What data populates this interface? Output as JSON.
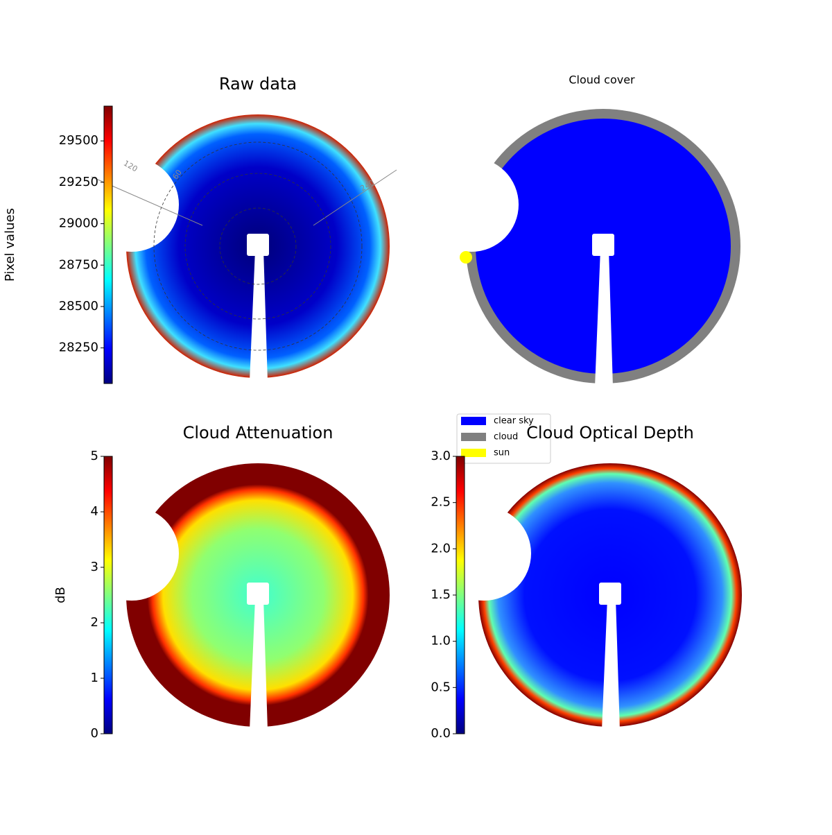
{
  "chart_data": [
    {
      "type": "image",
      "title": "Raw data",
      "colorbar_label": "Pixel values",
      "ylim": [
        28035,
        29710
      ],
      "yticks": [
        28250,
        28500,
        28750,
        29000,
        29250,
        29500
      ],
      "annotations": [
        "120",
        "60",
        "240"
      ]
    },
    {
      "type": "image",
      "title": "Cloud cover",
      "series": [
        {
          "name": "clear sky",
          "color": "#0000ff"
        },
        {
          "name": "cloud",
          "color": "#808080"
        },
        {
          "name": "sun",
          "color": "#ffff00"
        }
      ]
    },
    {
      "type": "image",
      "title": "Cloud Attenuation",
      "colorbar_label": "dB",
      "ylim": [
        0,
        5
      ],
      "yticks": [
        0,
        1,
        2,
        3,
        4,
        5
      ]
    },
    {
      "type": "image",
      "title": "Cloud Optical Depth",
      "ylim": [
        0,
        3.0
      ],
      "yticks": [
        {
          "value": 0,
          "label": "0.0"
        },
        {
          "value": 0.5,
          "label": "0.5"
        },
        {
          "value": 1,
          "label": "1.0"
        },
        {
          "value": 1.5,
          "label": "1.5"
        },
        {
          "value": 2,
          "label": "2.0"
        },
        {
          "value": 2.5,
          "label": "2.5"
        },
        {
          "value": 3,
          "label": "3.0"
        }
      ]
    }
  ]
}
